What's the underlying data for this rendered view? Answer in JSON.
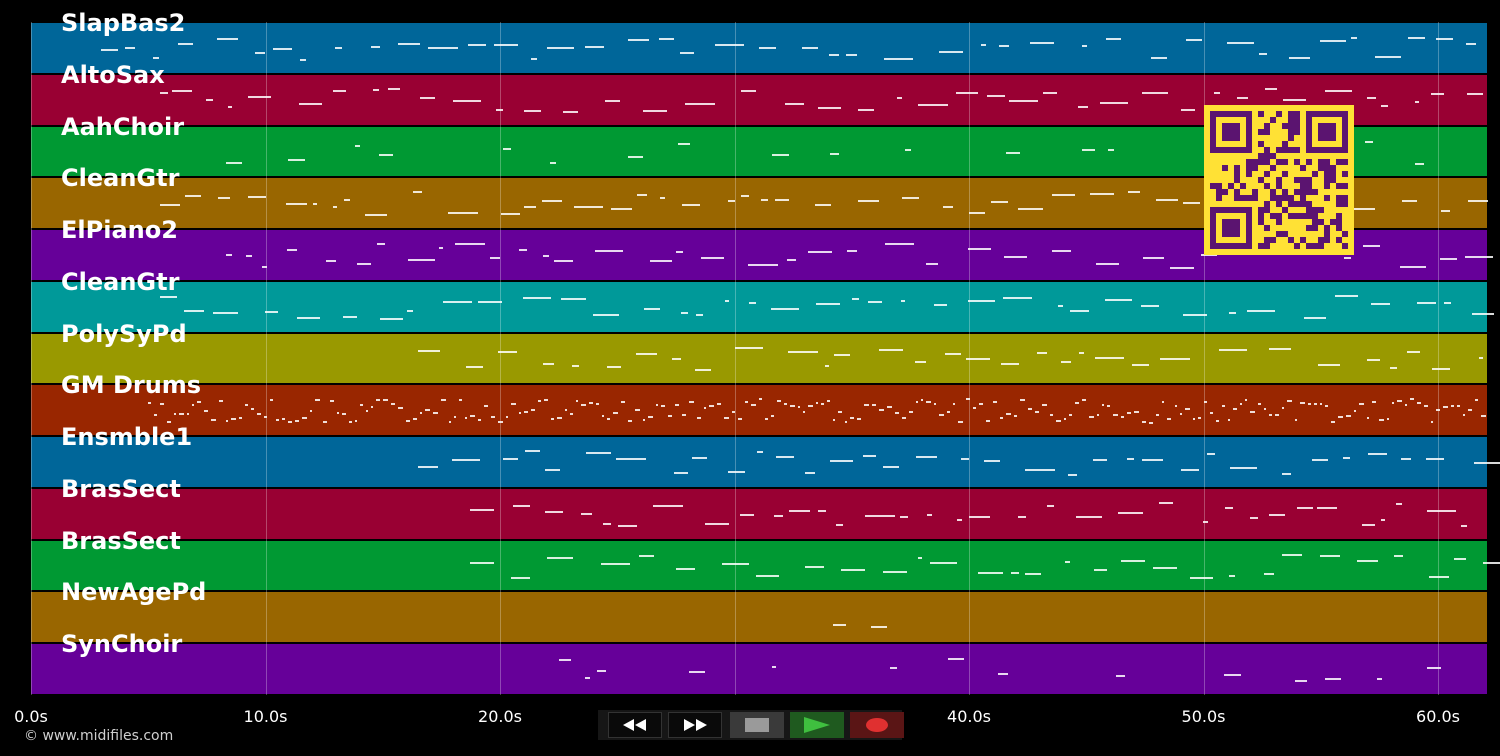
{
  "tracks": [
    {
      "name": "SlapBas2",
      "color": "#006699"
    },
    {
      "name": "AltoSax",
      "color": "#990033"
    },
    {
      "name": "AahChoir",
      "color": "#009933"
    },
    {
      "name": "CleanGtr",
      "color": "#996600"
    },
    {
      "name": "ElPiano2",
      "color": "#660099"
    },
    {
      "name": "CleanGtr",
      "color": "#009999"
    },
    {
      "name": "PolySyPd",
      "color": "#999900"
    },
    {
      "name": "GM Drums",
      "color": "#992600"
    },
    {
      "name": "Ensmble1",
      "color": "#006699"
    },
    {
      "name": "BrasSect",
      "color": "#990033"
    },
    {
      "name": "BrasSect",
      "color": "#009933"
    },
    {
      "name": "NewAgePd",
      "color": "#996600"
    },
    {
      "name": "SynChoir",
      "color": "#660099"
    }
  ],
  "time_axis": {
    "labels": [
      "0.0s",
      "10.0s",
      "20.0s",
      "30.0s",
      "40.0s",
      "50.0s",
      "60.0s"
    ],
    "values": [
      0,
      10,
      20,
      30,
      40,
      50,
      60
    ],
    "max_seconds": 62.1
  },
  "footer": {
    "copyright": "© www.midifiles.com"
  },
  "transport": {
    "rewind_icon": "rewind-icon",
    "forward_icon": "fast-forward-icon",
    "stop_icon": "stop-icon",
    "play_icon": "play-icon",
    "record_icon": "record-icon",
    "play_color": "#3fbf3f",
    "record_color": "#e03030"
  },
  "overlay": {
    "qr_color": "#ffe135",
    "qr_module_color": "#5b1470"
  }
}
